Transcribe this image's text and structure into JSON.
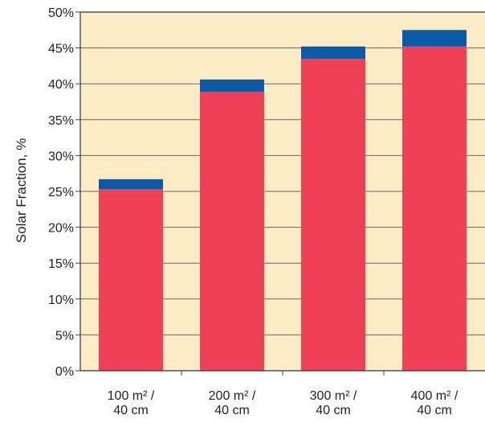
{
  "chart_data": {
    "type": "bar",
    "stacked": true,
    "title": "",
    "xlabel": "",
    "ylabel": "Solar Fraction, %",
    "ylim": [
      0,
      50
    ],
    "y_ticks": [
      "0%",
      "5%",
      "10%",
      "15%",
      "20%",
      "25%",
      "30%",
      "35%",
      "40%",
      "45%",
      "50%"
    ],
    "categories": [
      [
        "100 m² /",
        "40 cm"
      ],
      [
        "200 m² /",
        "40 cm"
      ],
      [
        "300 m² /",
        "40 cm"
      ],
      [
        "400 m² /",
        "40 cm"
      ]
    ],
    "series": [
      {
        "color": "#ef4058",
        "values": [
          25.3,
          38.9,
          43.5,
          45.2
        ]
      },
      {
        "color": "#0b5aa8",
        "values": [
          1.4,
          1.7,
          1.7,
          2.3
        ]
      }
    ],
    "background": "#fdebc6",
    "grid": true,
    "gridColor": "#666666",
    "legend": "none"
  }
}
